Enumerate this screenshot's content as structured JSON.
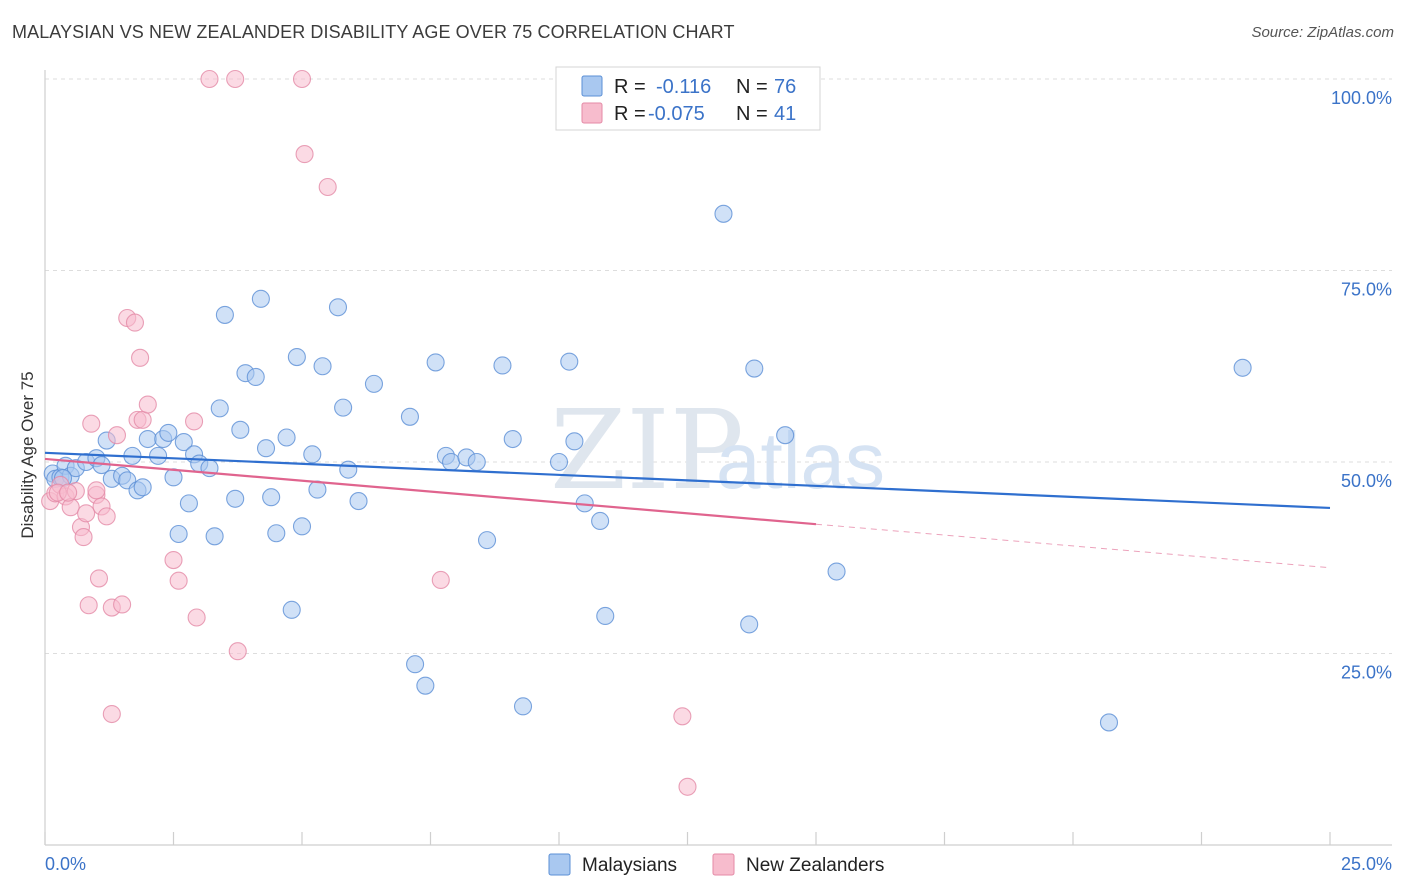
{
  "title": "MALAYSIAN VS NEW ZEALANDER DISABILITY AGE OVER 75 CORRELATION CHART",
  "source": "Source: ZipAtlas.com",
  "watermark": {
    "zip": "ZIP",
    "atlas": "atlas"
  },
  "legend": {
    "rows": [
      {
        "r_label": "R =",
        "r_value": "-0.116",
        "n_label": "N =",
        "n_value": "76",
        "color": "#a9c8f0",
        "stroke": "#5b8fd6"
      },
      {
        "r_label": "R =",
        "r_value": "-0.075",
        "n_label": "N =",
        "n_value": "41",
        "color": "#f7bccd",
        "stroke": "#e48aa6"
      }
    ]
  },
  "bottom_legend": [
    {
      "label": "Malaysians",
      "color": "#a9c8f0",
      "stroke": "#5b8fd6"
    },
    {
      "label": "New Zealanders",
      "color": "#f7bccd",
      "stroke": "#e48aa6"
    }
  ],
  "chart_data": {
    "type": "scatter",
    "ylabel": "Disability Age Over 75",
    "xlim": [
      0,
      25
    ],
    "ylim": [
      0,
      100
    ],
    "x_tick_labels": [
      "0.0%",
      "25.0%"
    ],
    "y_tick_labels": [
      "25.0%",
      "50.0%",
      "75.0%",
      "100.0%"
    ],
    "y_ticks": [
      25,
      50,
      75,
      100
    ],
    "grid": true,
    "series": [
      {
        "name": "Malaysians",
        "color": "#a9c8f0",
        "stroke": "#5b8fd6",
        "line_color": "#2f6fcf",
        "trend": {
          "x0": 0,
          "y0": 51.2,
          "x1": 25,
          "y1": 44.0,
          "solid_to": 25
        },
        "points": [
          [
            0.15,
            48.5
          ],
          [
            0.2,
            47.8
          ],
          [
            0.3,
            48.0
          ],
          [
            0.4,
            49.5
          ],
          [
            0.5,
            48.2
          ],
          [
            0.6,
            49.2
          ],
          [
            0.8,
            50.0
          ],
          [
            1.0,
            50.5
          ],
          [
            1.1,
            49.6
          ],
          [
            1.2,
            52.8
          ],
          [
            1.3,
            47.8
          ],
          [
            1.5,
            48.2
          ],
          [
            1.6,
            47.6
          ],
          [
            1.7,
            50.8
          ],
          [
            1.8,
            46.3
          ],
          [
            1.9,
            46.7
          ],
          [
            2.0,
            53.0
          ],
          [
            2.2,
            50.8
          ],
          [
            2.3,
            53.0
          ],
          [
            2.4,
            53.8
          ],
          [
            2.5,
            48.0
          ],
          [
            2.6,
            40.6
          ],
          [
            2.7,
            52.6
          ],
          [
            2.8,
            44.6
          ],
          [
            2.9,
            51.0
          ],
          [
            3.0,
            49.8
          ],
          [
            3.2,
            49.2
          ],
          [
            3.3,
            40.3
          ],
          [
            3.4,
            57.0
          ],
          [
            3.5,
            69.2
          ],
          [
            3.7,
            45.2
          ],
          [
            3.8,
            54.2
          ],
          [
            3.9,
            61.6
          ],
          [
            4.1,
            61.1
          ],
          [
            4.2,
            71.3
          ],
          [
            4.3,
            51.8
          ],
          [
            4.4,
            45.4
          ],
          [
            4.5,
            40.7
          ],
          [
            4.7,
            53.2
          ],
          [
            4.8,
            30.7
          ],
          [
            4.9,
            63.7
          ],
          [
            5.0,
            41.6
          ],
          [
            5.2,
            51.0
          ],
          [
            5.3,
            46.4
          ],
          [
            5.4,
            62.5
          ],
          [
            5.7,
            70.2
          ],
          [
            5.8,
            57.1
          ],
          [
            5.9,
            49.0
          ],
          [
            6.1,
            44.9
          ],
          [
            6.4,
            60.2
          ],
          [
            7.1,
            55.9
          ],
          [
            7.2,
            23.6
          ],
          [
            7.4,
            20.8
          ],
          [
            7.6,
            63.0
          ],
          [
            7.8,
            50.8
          ],
          [
            7.9,
            50.0
          ],
          [
            8.2,
            50.6
          ],
          [
            8.4,
            50.0
          ],
          [
            8.6,
            39.8
          ],
          [
            8.9,
            62.6
          ],
          [
            9.1,
            53.0
          ],
          [
            9.3,
            18.1
          ],
          [
            10.0,
            50.0
          ],
          [
            10.2,
            63.1
          ],
          [
            10.3,
            52.7
          ],
          [
            10.5,
            44.6
          ],
          [
            10.8,
            42.3
          ],
          [
            10.9,
            29.9
          ],
          [
            13.2,
            82.4
          ],
          [
            13.7,
            28.8
          ],
          [
            13.8,
            62.2
          ],
          [
            14.4,
            53.5
          ],
          [
            15.4,
            35.7
          ],
          [
            20.7,
            16.0
          ],
          [
            23.3,
            62.3
          ],
          [
            0.35,
            47.9
          ]
        ]
      },
      {
        "name": "New Zealanders",
        "color": "#f7bccd",
        "stroke": "#e48aa6",
        "line_color": "#e0648e",
        "trend": {
          "x0": 0,
          "y0": 50.4,
          "x1": 25,
          "y1": 36.2,
          "solid_to": 15.0
        },
        "points": [
          [
            0.1,
            44.9
          ],
          [
            0.2,
            45.9
          ],
          [
            0.3,
            47.0
          ],
          [
            0.4,
            45.5
          ],
          [
            0.5,
            44.1
          ],
          [
            0.6,
            46.2
          ],
          [
            0.7,
            41.5
          ],
          [
            0.75,
            40.2
          ],
          [
            0.8,
            43.3
          ],
          [
            0.85,
            31.3
          ],
          [
            0.9,
            55.0
          ],
          [
            1.0,
            45.7
          ],
          [
            1.05,
            34.8
          ],
          [
            1.1,
            44.2
          ],
          [
            1.2,
            42.9
          ],
          [
            1.3,
            31.0
          ],
          [
            1.3,
            17.1
          ],
          [
            1.4,
            53.5
          ],
          [
            1.5,
            31.4
          ],
          [
            1.6,
            68.8
          ],
          [
            1.75,
            68.2
          ],
          [
            1.8,
            55.5
          ],
          [
            1.85,
            63.6
          ],
          [
            1.9,
            55.5
          ],
          [
            2.0,
            57.5
          ],
          [
            2.5,
            37.2
          ],
          [
            2.6,
            34.5
          ],
          [
            2.9,
            55.3
          ],
          [
            2.95,
            29.7
          ],
          [
            3.2,
            100.0
          ],
          [
            3.7,
            100.0
          ],
          [
            3.75,
            25.3
          ],
          [
            5.0,
            100.0
          ],
          [
            5.05,
            90.2
          ],
          [
            5.5,
            85.9
          ],
          [
            7.7,
            34.6
          ],
          [
            12.4,
            16.8
          ],
          [
            12.5,
            7.6
          ],
          [
            0.25,
            46.0
          ],
          [
            0.45,
            46.0
          ],
          [
            1.0,
            46.3
          ]
        ]
      }
    ]
  }
}
